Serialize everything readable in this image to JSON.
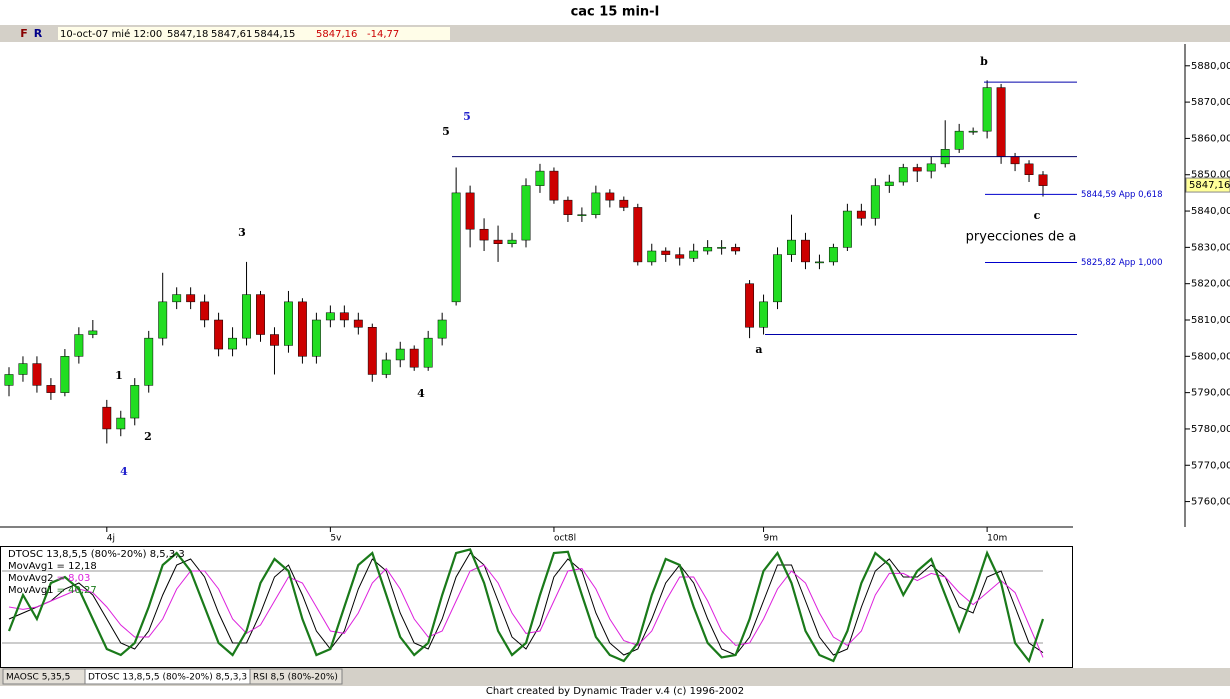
{
  "chart_data": [
    {
      "type": "candlestick",
      "title": "cac 15 min-I",
      "categories": [
        null,
        null,
        null,
        null,
        null,
        null,
        null,
        "4j",
        null,
        null,
        null,
        null,
        null,
        null,
        null,
        null,
        null,
        null,
        null,
        null,
        null,
        null,
        null,
        "5v",
        null,
        null,
        null,
        null,
        null,
        null,
        null,
        null,
        null,
        null,
        null,
        null,
        null,
        null,
        null,
        "oct8l",
        null,
        null,
        null,
        null,
        null,
        null,
        null,
        null,
        null,
        null,
        null,
        null,
        null,
        null,
        "9m",
        null,
        null,
        null,
        null,
        null,
        null,
        null,
        null,
        null,
        null,
        null,
        null,
        null,
        null,
        null,
        "10m",
        null,
        null,
        null,
        null
      ],
      "open": [
        5792,
        5795,
        5798,
        5792,
        5790,
        5800,
        5806,
        5786,
        5780,
        5783,
        5792,
        5805,
        5815,
        5817,
        5815,
        5810,
        5802,
        5805,
        5817,
        5806,
        5803,
        5815,
        5800,
        5810,
        5812,
        5810,
        5808,
        5795,
        5799,
        5802,
        5797,
        5805,
        5815,
        5845,
        5835,
        5832,
        5831,
        5832,
        5847,
        5851,
        5843,
        5839,
        5839,
        5845,
        5843,
        5841,
        5826,
        5829,
        5828,
        5827,
        5829,
        5830,
        5830,
        5820,
        5808,
        5815,
        5828,
        5832,
        5826,
        5826,
        5830,
        5840,
        5838,
        5847,
        5848,
        5852,
        5851,
        5853,
        5857,
        5862,
        5862,
        5874,
        5855,
        5853,
        5850
      ],
      "high": [
        5797,
        5800,
        5800,
        5794,
        5802,
        5808,
        5810,
        5788,
        5785,
        5794,
        5807,
        5823,
        5819,
        5819,
        5817,
        5812,
        5808,
        5826,
        5818,
        5808,
        5818,
        5816,
        5812,
        5814,
        5814,
        5812,
        5809,
        5801,
        5804,
        5803,
        5807,
        5812,
        5852,
        5847,
        5838,
        5836,
        5834,
        5849,
        5853,
        5852,
        5844,
        5841,
        5847,
        5846,
        5844,
        5842,
        5831,
        5830,
        5830,
        5831,
        5832,
        5832,
        5831,
        5821,
        5817,
        5830,
        5839,
        5834,
        5828,
        5831,
        5842,
        5842,
        5849,
        5850,
        5853,
        5853,
        5855,
        5865,
        5864,
        5863,
        5876,
        5875,
        5856,
        5854,
        5851
      ],
      "low": [
        5789,
        5793,
        5790,
        5788,
        5789,
        5798,
        5805,
        5776,
        5778,
        5781,
        5790,
        5803,
        5813,
        5813,
        5808,
        5800,
        5800,
        5803,
        5804,
        5795,
        5801,
        5798,
        5798,
        5808,
        5808,
        5806,
        5793,
        5794,
        5797,
        5796,
        5796,
        5803,
        5814,
        5830,
        5829,
        5826,
        5830,
        5830,
        5845,
        5842,
        5837,
        5837,
        5838,
        5841,
        5840,
        5825,
        5825,
        5826,
        5825,
        5826,
        5828,
        5828,
        5828,
        5805,
        5806,
        5813,
        5826,
        5824,
        5824,
        5825,
        5829,
        5836,
        5836,
        5845,
        5847,
        5848,
        5849,
        5852,
        5856,
        5861,
        5860,
        5853,
        5851,
        5848,
        5844
      ],
      "close": [
        5795,
        5798,
        5792,
        5790,
        5800,
        5806,
        5807,
        5780,
        5783,
        5792,
        5805,
        5815,
        5817,
        5815,
        5810,
        5802,
        5805,
        5817,
        5806,
        5803,
        5815,
        5800,
        5810,
        5812,
        5810,
        5808,
        5795,
        5799,
        5802,
        5797,
        5805,
        5810,
        5845,
        5835,
        5832,
        5831,
        5832,
        5847,
        5851,
        5843,
        5839,
        5839,
        5845,
        5843,
        5841,
        5826,
        5829,
        5828,
        5827,
        5829,
        5830,
        5830,
        5829,
        5808,
        5815,
        5828,
        5832,
        5826,
        5826,
        5830,
        5840,
        5838,
        5847,
        5848,
        5852,
        5851,
        5853,
        5857,
        5862,
        5862,
        5874,
        5855,
        5853,
        5850,
        5847
      ],
      "up_color": "#22dd22",
      "down_color": "#cc0000",
      "ylim": [
        5753,
        5886
      ],
      "yticks": [
        {
          "value": 5760,
          "label": "5760,00"
        },
        {
          "value": 5770,
          "label": "5770,00"
        },
        {
          "value": 5780,
          "label": "5780,00"
        },
        {
          "value": 5790,
          "label": "5790,00"
        },
        {
          "value": 5800,
          "label": "5800,00"
        },
        {
          "value": 5810,
          "label": "5810,00"
        },
        {
          "value": 5820,
          "label": "5820,00"
        },
        {
          "value": 5830,
          "label": "5830,00"
        },
        {
          "value": 5840,
          "label": "5840,00"
        },
        {
          "value": 5850,
          "label": "5850,00"
        },
        {
          "value": 5860,
          "label": "5860,00"
        },
        {
          "value": 5870,
          "label": "5870,00"
        },
        {
          "value": 5880,
          "label": "5880,00"
        }
      ],
      "levels": [
        5855,
        5806,
        5875.5
      ],
      "projections": [
        {
          "value": 5844.59,
          "label": "5844,59 App 0,618"
        },
        {
          "value": 5825.82,
          "label": "5825,82 App 1,000"
        }
      ],
      "last_price": {
        "value": 5847.16,
        "label": "5847,16"
      },
      "annotations": [
        {
          "text": "1",
          "color": "#000000"
        },
        {
          "text": "2",
          "color": "#000000"
        },
        {
          "text": "3",
          "color": "#000000"
        },
        {
          "text": "4",
          "color": "#000000"
        },
        {
          "text": "4",
          "color": "#2222cc"
        },
        {
          "text": "5",
          "color": "#000000"
        },
        {
          "text": "5",
          "color": "#2222cc"
        },
        {
          "text": "a",
          "color": "#000000"
        },
        {
          "text": "b",
          "color": "#000000"
        },
        {
          "text": "c",
          "color": "#000000"
        },
        {
          "text": "pryecciones de a",
          "color": "#000000"
        }
      ]
    },
    {
      "type": "line",
      "title": "DTOSC 13,8,5,5 (80%-20%) 8,5,3,3",
      "ylim": [
        0,
        100
      ],
      "ref_lines": [
        80,
        20
      ],
      "series": [
        {
          "name": "MovAvg1",
          "legend_value": "= 12,18",
          "color": "#000000",
          "values": [
            40,
            45,
            50,
            55,
            65,
            70,
            60,
            40,
            20,
            15,
            30,
            60,
            85,
            90,
            75,
            45,
            20,
            20,
            45,
            75,
            85,
            60,
            30,
            15,
            30,
            65,
            90,
            80,
            45,
            20,
            15,
            40,
            75,
            95,
            85,
            55,
            25,
            15,
            35,
            75,
            90,
            80,
            45,
            20,
            10,
            15,
            40,
            70,
            85,
            70,
            40,
            15,
            10,
            25,
            55,
            85,
            85,
            55,
            25,
            10,
            15,
            50,
            80,
            90,
            75,
            75,
            85,
            75,
            50,
            45,
            75,
            80,
            50,
            20,
            12
          ]
        },
        {
          "name": "MovAvg2",
          "legend_value": "= 8,03",
          "color": "#dd22dd",
          "values": [
            50,
            48,
            50,
            55,
            60,
            65,
            62,
            50,
            35,
            25,
            25,
            40,
            65,
            80,
            80,
            65,
            40,
            28,
            35,
            55,
            75,
            70,
            50,
            30,
            28,
            45,
            70,
            82,
            65,
            40,
            25,
            30,
            55,
            80,
            85,
            70,
            45,
            28,
            30,
            55,
            80,
            82,
            65,
            40,
            22,
            18,
            30,
            55,
            75,
            75,
            55,
            30,
            18,
            20,
            40,
            65,
            80,
            70,
            45,
            25,
            18,
            30,
            60,
            78,
            78,
            72,
            78,
            75,
            62,
            52,
            62,
            72,
            62,
            35,
            8
          ]
        },
        {
          "name": "MovAvg1",
          "legend_value": "= 40,27",
          "color": "#1a7a1a",
          "values": [
            30,
            60,
            40,
            70,
            75,
            65,
            40,
            15,
            10,
            20,
            50,
            85,
            95,
            80,
            50,
            20,
            10,
            30,
            70,
            90,
            80,
            40,
            10,
            15,
            50,
            85,
            95,
            60,
            25,
            10,
            20,
            60,
            95,
            98,
            70,
            30,
            10,
            20,
            60,
            95,
            96,
            60,
            25,
            10,
            5,
            20,
            60,
            90,
            85,
            50,
            20,
            8,
            10,
            40,
            80,
            95,
            70,
            30,
            10,
            5,
            30,
            70,
            95,
            85,
            60,
            80,
            90,
            60,
            30,
            60,
            95,
            70,
            20,
            5,
            40
          ]
        }
      ]
    }
  ],
  "status": {
    "buttons": [
      "F",
      "R"
    ],
    "fields": [
      "10-oct-07 mié 12:00",
      "5847,18",
      "5847,61",
      "5844,15",
      "5847,16",
      "-14,77"
    ]
  },
  "tabs": [
    "MAOSC 5,35,5",
    "DTOSC 13,8,5,5 (80%-20%) 8,5,3,3",
    "RSI 8,5 (80%-20%)"
  ],
  "footer": "Chart created by Dynamic Trader v.4  (c) 1996-2002"
}
